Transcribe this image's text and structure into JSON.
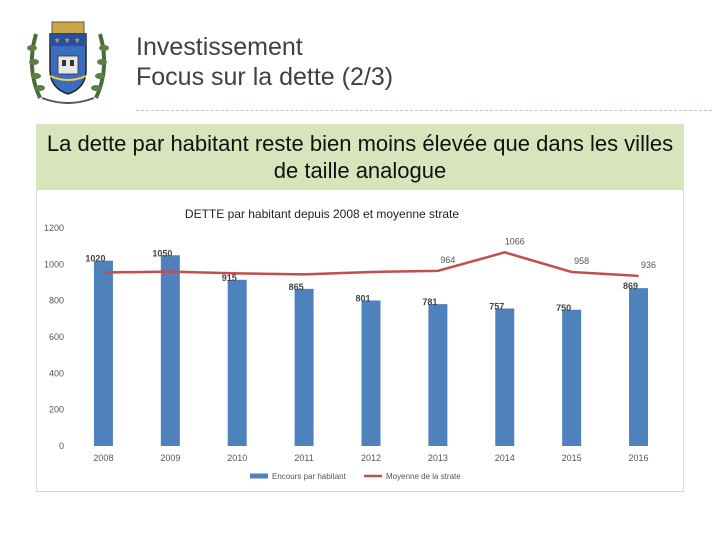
{
  "header": {
    "title_line1": "Investissement",
    "title_line2": "Focus sur la dette (2/3)"
  },
  "banner": {
    "text": "La dette par habitant reste bien moins élevée que dans les villes de taille analogue"
  },
  "colors": {
    "bar": "#4f81bd",
    "line": "#c0504d",
    "banner": "#d8e4bc"
  },
  "logo": {
    "icon": "city-coat-of-arms-icon"
  },
  "chart_data": {
    "type": "bar",
    "title": "DETTE par habitant depuis 2008 et moyenne strate",
    "categories": [
      "2008",
      "2009",
      "2010",
      "2011",
      "2012",
      "2013",
      "2014",
      "2015",
      "2016"
    ],
    "ylim": [
      0,
      1200
    ],
    "yticks": [
      "0",
      "200",
      "400",
      "600",
      "800",
      "1000",
      "1200"
    ],
    "grid": false,
    "legend_position": "bottom",
    "series": [
      {
        "name": "Encours par habitant",
        "type": "bar",
        "values": [
          1020,
          1050,
          915,
          865,
          801,
          781,
          757,
          750,
          869
        ],
        "labels": [
          "1020",
          "1050",
          "915",
          "865",
          "801",
          "781",
          "757",
          "750",
          "869"
        ]
      },
      {
        "name": "Moyenne de la strate",
        "type": "line",
        "values": [
          955,
          960,
          950,
          945,
          958,
          964,
          1066,
          958,
          936
        ],
        "labels": [
          "",
          "",
          "",
          "",
          "",
          "964",
          "1066",
          "958",
          "936"
        ]
      }
    ]
  }
}
